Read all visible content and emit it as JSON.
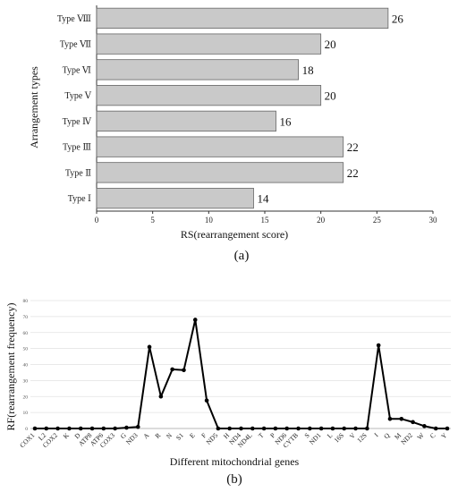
{
  "chart_data": [
    {
      "type": "bar",
      "orientation": "horizontal",
      "panel_label": "(a)",
      "ylabel": "Arrangement types",
      "xlabel": "RS(rearrangement score)",
      "categories": [
        "Type Ⅷ",
        "Type Ⅶ",
        "Type Ⅵ",
        "Type Ⅴ",
        "Type Ⅳ",
        "Type Ⅲ",
        "Type Ⅱ",
        "Type Ⅰ"
      ],
      "values": [
        26,
        20,
        18,
        20,
        16,
        22,
        22,
        14
      ],
      "xlim": [
        0,
        30
      ],
      "xticks": [
        0,
        5,
        10,
        15,
        20,
        25,
        30
      ],
      "grid": false,
      "bar_color": "#c9c9c9"
    },
    {
      "type": "line",
      "panel_label": "(b)",
      "ylabel": "RF(rearrangement frequency)",
      "xlabel": "Different mitochondrial genes",
      "categories": [
        "COX1",
        "L2",
        "COX2",
        "K",
        "D",
        "ATP8",
        "ATP6",
        "COX3",
        "G",
        "ND3",
        "A",
        "R",
        "N",
        "S1",
        "E",
        "F",
        "ND5",
        "H",
        "ND4",
        "ND4L",
        "T",
        "P",
        "ND6",
        "CYTB",
        "S",
        "ND1",
        "L",
        "16S",
        "V",
        "12S",
        "I",
        "Q",
        "M",
        "ND2",
        "W",
        "C",
        "Y"
      ],
      "values": [
        0,
        0,
        0,
        0,
        0,
        0,
        0,
        0,
        0.5,
        1,
        51,
        20,
        37,
        36.5,
        68,
        17.5,
        0,
        0,
        0,
        0,
        0,
        0,
        0,
        0,
        0,
        0,
        0,
        0,
        0,
        0,
        52,
        6,
        6,
        4,
        1.5,
        0,
        0
      ],
      "ylim": [
        0,
        80
      ],
      "yticks": [
        0,
        10,
        20,
        30,
        40,
        50,
        60,
        70,
        80
      ],
      "grid": true,
      "line_color": "#000000"
    }
  ]
}
